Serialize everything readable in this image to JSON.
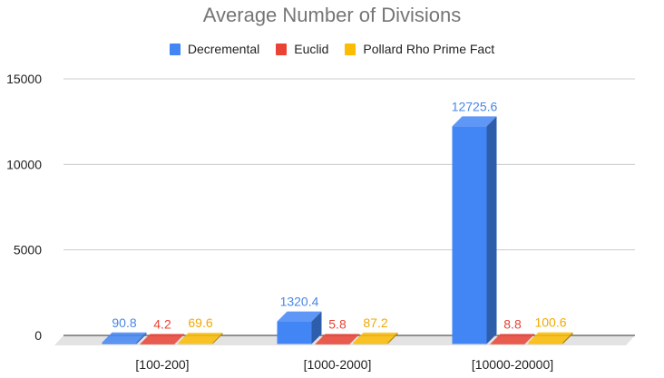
{
  "chart_data": {
    "type": "bar",
    "title": "Average Number of Divisions",
    "xlabel": "",
    "ylabel": "",
    "categories": [
      "[100-200]",
      "[1000-2000]",
      "[10000-20000]"
    ],
    "series": [
      {
        "name": "Decremental",
        "values": [
          90.8,
          1320.4,
          12725.6
        ],
        "labels": [
          "90.8",
          "1320.4",
          "12725.6"
        ],
        "color": "#4285F4",
        "side_color": "#2E5DAB",
        "label_color": "#4a86e8"
      },
      {
        "name": "Euclid",
        "values": [
          4.2,
          5.8,
          8.8
        ],
        "labels": [
          "4.2",
          "5.8",
          "8.8"
        ],
        "color": "#EA4335",
        "side_color": "#A42E25",
        "label_color": "#EA4335"
      },
      {
        "name": "Pollard Rho Prime Fact",
        "values": [
          69.6,
          87.2,
          100.6
        ],
        "labels": [
          "69.6",
          "87.2",
          "100.6"
        ],
        "color": "#FBBC04",
        "side_color": "#B08303",
        "label_color": "#F2A900"
      }
    ],
    "ylim": [
      0,
      15000
    ],
    "yticks": [
      "0",
      "5000",
      "10000",
      "15000"
    ],
    "grid": true,
    "legend_position": "top",
    "style": "3d"
  }
}
